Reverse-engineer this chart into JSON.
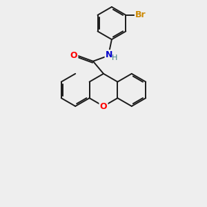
{
  "background_color": "#eeeeee",
  "atom_colors": {
    "O_carbonyl": "#ff0000",
    "O_ether": "#ff0000",
    "N": "#0000cc",
    "H": "#408080",
    "Br": "#cc8800"
  },
  "bond_color": "#1a1a1a",
  "bond_width": 1.4,
  "figsize": [
    3.0,
    3.0
  ],
  "dpi": 100
}
